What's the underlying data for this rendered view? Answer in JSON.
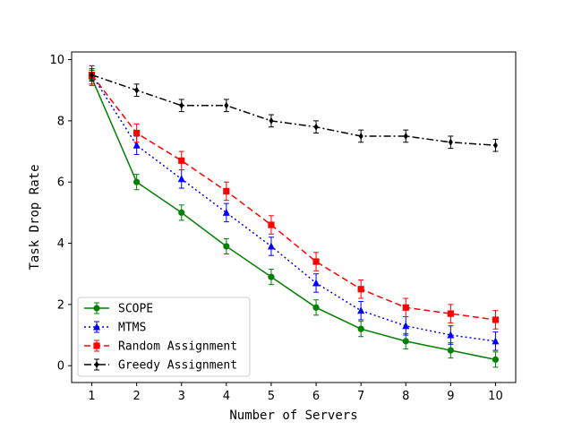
{
  "chart_data": {
    "type": "line",
    "title": "",
    "xlabel": "Number of Servers",
    "ylabel": "Task Drop Rate",
    "xlim": [
      0.55,
      10.45
    ],
    "ylim": [
      -0.55,
      10.25
    ],
    "x_ticks": [
      1,
      2,
      3,
      4,
      5,
      6,
      7,
      8,
      9,
      10
    ],
    "y_ticks": [
      0,
      2,
      4,
      6,
      8,
      10
    ],
    "grid": false,
    "legend_position": "lower-left",
    "x": [
      1,
      2,
      3,
      4,
      5,
      6,
      7,
      8,
      9,
      10
    ],
    "series": [
      {
        "name": "SCOPE",
        "color": "#008000",
        "line_style": "solid",
        "marker": "circle",
        "values": [
          9.4,
          6.0,
          5.0,
          3.9,
          2.9,
          1.9,
          1.2,
          0.8,
          0.5,
          0.2
        ],
        "errors": [
          0.25,
          0.25,
          0.25,
          0.25,
          0.25,
          0.25,
          0.25,
          0.25,
          0.25,
          0.25
        ]
      },
      {
        "name": "MTMS",
        "color": "#0000ff",
        "line_style": "dotted",
        "marker": "triangle",
        "values": [
          9.5,
          7.2,
          6.1,
          5.0,
          3.9,
          2.7,
          1.8,
          1.3,
          1.0,
          0.8
        ],
        "errors": [
          0.3,
          0.3,
          0.3,
          0.3,
          0.3,
          0.3,
          0.3,
          0.3,
          0.3,
          0.3
        ]
      },
      {
        "name": "Random Assignment",
        "color": "#ff0000",
        "line_style": "dashed",
        "marker": "square",
        "values": [
          9.5,
          7.6,
          6.7,
          5.7,
          4.6,
          3.4,
          2.5,
          1.9,
          1.7,
          1.5
        ],
        "errors": [
          0.3,
          0.3,
          0.3,
          0.3,
          0.3,
          0.3,
          0.3,
          0.3,
          0.3,
          0.3
        ]
      },
      {
        "name": "Greedy Assignment",
        "color": "#000000",
        "line_style": "dashdot",
        "marker": "diamond",
        "values": [
          9.5,
          9.0,
          8.5,
          8.5,
          8.0,
          7.8,
          7.5,
          7.5,
          7.3,
          7.2
        ],
        "errors": [
          0.2,
          0.2,
          0.2,
          0.2,
          0.2,
          0.2,
          0.2,
          0.2,
          0.2,
          0.2
        ]
      }
    ]
  }
}
